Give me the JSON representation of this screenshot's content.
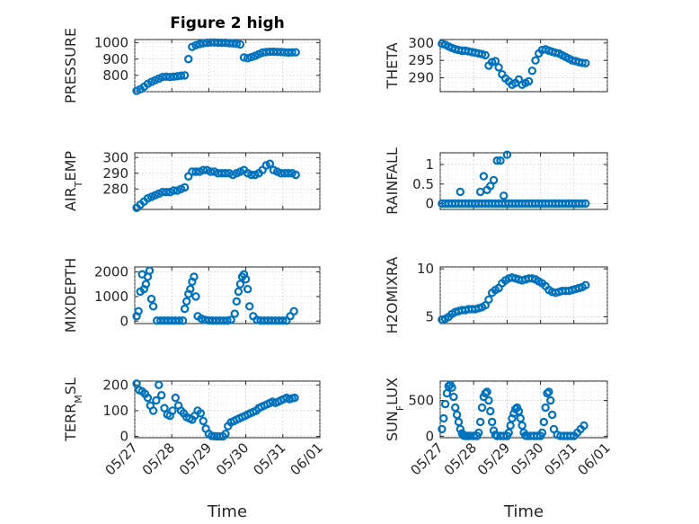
{
  "figure": {
    "title": "Figure 2 high",
    "xlabel": "Time"
  },
  "date_ticks": [
    "05/27",
    "05/28",
    "05/29",
    "05/30",
    "05/31",
    "06/01"
  ],
  "chart_data": [
    {
      "type": "scatter",
      "ylabel": "PRESSURE",
      "xlim": [
        0,
        5
      ],
      "ylim": [
        700,
        1020
      ],
      "yticks": [
        800,
        900,
        1000
      ],
      "x": [
        0.05,
        0.15,
        0.25,
        0.35,
        0.45,
        0.55,
        0.65,
        0.75,
        0.85,
        0.95,
        1.05,
        1.15,
        1.25,
        1.35,
        1.45,
        1.55,
        1.65,
        1.75,
        1.85,
        1.95,
        2.05,
        2.15,
        2.25,
        2.35,
        2.45,
        2.55,
        2.65,
        2.75,
        2.85,
        2.95,
        3.05,
        3.15,
        3.25,
        3.35,
        3.45,
        3.55,
        3.65,
        3.75,
        3.85,
        3.95,
        4.05,
        4.15,
        4.25,
        4.35
      ],
      "y": [
        705,
        715,
        730,
        748,
        760,
        770,
        780,
        790,
        792,
        790,
        792,
        795,
        798,
        800,
        900,
        975,
        985,
        992,
        997,
        1000,
        1002,
        1002,
        1001,
        1000,
        1000,
        998,
        996,
        994,
        990,
        910,
        905,
        912,
        920,
        930,
        940,
        943,
        945,
        945,
        944,
        943,
        942,
        940,
        941,
        942
      ]
    },
    {
      "type": "scatter",
      "ylabel": "THETA",
      "xlim": [
        0,
        5
      ],
      "ylim": [
        286,
        301
      ],
      "yticks": [
        290,
        295,
        300
      ],
      "x": [
        0.05,
        0.15,
        0.25,
        0.35,
        0.45,
        0.55,
        0.65,
        0.75,
        0.85,
        0.95,
        1.05,
        1.15,
        1.25,
        1.35,
        1.45,
        1.55,
        1.65,
        1.75,
        1.85,
        1.95,
        2.05,
        2.15,
        2.25,
        2.35,
        2.45,
        2.55,
        2.65,
        2.75,
        2.85,
        2.95,
        3.05,
        3.15,
        3.25,
        3.35,
        3.45,
        3.55,
        3.65,
        3.75,
        3.85,
        3.95,
        4.05,
        4.15,
        4.25,
        4.35
      ],
      "y": [
        299.8,
        299.5,
        299.0,
        298.6,
        298.2,
        298.0,
        297.8,
        297.8,
        297.6,
        297.4,
        297.2,
        297.0,
        296.8,
        296.5,
        293.5,
        294.5,
        294.8,
        293.0,
        291.0,
        289.8,
        289.0,
        288.0,
        288.5,
        289.5,
        288.0,
        288.5,
        289.0,
        292.0,
        295.0,
        297.0,
        298.0,
        298.2,
        297.8,
        297.5,
        297.2,
        297.0,
        296.5,
        296.0,
        295.5,
        295.0,
        294.8,
        294.5,
        294.3,
        294.2
      ]
    },
    {
      "type": "scatter",
      "ylabel": "AIR_TEMP",
      "xlim": [
        0,
        5
      ],
      "ylim": [
        267,
        303
      ],
      "yticks": [
        280,
        290,
        300
      ],
      "x": [
        0.05,
        0.15,
        0.25,
        0.35,
        0.45,
        0.55,
        0.65,
        0.75,
        0.85,
        0.95,
        1.05,
        1.15,
        1.25,
        1.35,
        1.45,
        1.55,
        1.65,
        1.75,
        1.85,
        1.95,
        2.05,
        2.15,
        2.25,
        2.35,
        2.45,
        2.55,
        2.65,
        2.75,
        2.85,
        2.95,
        3.05,
        3.15,
        3.25,
        3.35,
        3.45,
        3.55,
        3.65,
        3.75,
        3.85,
        3.95,
        4.05,
        4.15,
        4.25,
        4.35
      ],
      "y": [
        268,
        270,
        272,
        274,
        275,
        276,
        277,
        278,
        278,
        278,
        279,
        279,
        280,
        281,
        288,
        291,
        291,
        291,
        292,
        292,
        291,
        291,
        290,
        290,
        290,
        290,
        289,
        290,
        291,
        292,
        290,
        289,
        289,
        290,
        292,
        295,
        296,
        292,
        291,
        290,
        290,
        290,
        290,
        289
      ]
    },
    {
      "type": "scatter",
      "ylabel": "RAINFALL",
      "xlim": [
        0,
        5
      ],
      "ylim": [
        -0.15,
        1.3
      ],
      "yticks": [
        0,
        0.5,
        1
      ],
      "x": [
        0.05,
        0.15,
        0.25,
        0.35,
        0.45,
        0.55,
        0.65,
        0.75,
        0.85,
        0.95,
        1.05,
        1.15,
        1.25,
        1.35,
        1.45,
        1.55,
        1.65,
        1.75,
        1.85,
        1.95,
        2.05,
        2.15,
        2.25,
        2.35,
        2.45,
        2.55,
        2.65,
        2.75,
        2.85,
        2.95,
        3.05,
        3.15,
        3.25,
        3.35,
        3.45,
        3.55,
        3.65,
        3.75,
        3.85,
        3.95,
        4.05,
        4.15,
        4.25,
        4.35,
        0.6,
        1.2,
        1.3,
        1.4,
        1.5,
        1.6,
        1.7,
        1.8,
        1.9,
        2.0
      ],
      "y": [
        0,
        0,
        0,
        0,
        0,
        0,
        0,
        0,
        0,
        0,
        0,
        0,
        0,
        0,
        0,
        0,
        0,
        0,
        0,
        0,
        0,
        0,
        0,
        0,
        0,
        0,
        0,
        0,
        0,
        0,
        0,
        0,
        0,
        0,
        0,
        0,
        0,
        0,
        0,
        0,
        0,
        0,
        0,
        0,
        0.3,
        0.3,
        0.7,
        0.35,
        0.45,
        0.6,
        1.1,
        1.1,
        0.2,
        1.25
      ]
    },
    {
      "type": "scatter",
      "ylabel": "MIXDEPTH",
      "xlim": [
        0,
        5
      ],
      "ylim": [
        -100,
        2200
      ],
      "yticks": [
        0,
        1000,
        2000
      ],
      "x": [
        0.05,
        0.1,
        0.15,
        0.2,
        0.25,
        0.3,
        0.35,
        0.4,
        0.45,
        0.5,
        0.6,
        0.7,
        0.8,
        0.9,
        1.0,
        1.1,
        1.2,
        1.3,
        1.35,
        1.4,
        1.45,
        1.5,
        1.55,
        1.6,
        1.65,
        1.7,
        1.8,
        1.9,
        2.0,
        2.1,
        2.2,
        2.3,
        2.4,
        2.5,
        2.6,
        2.7,
        2.75,
        2.8,
        2.85,
        2.9,
        2.95,
        3.0,
        3.05,
        3.1,
        3.2,
        3.3,
        3.4,
        3.5,
        3.6,
        3.7,
        3.8,
        3.9,
        4.0,
        4.1,
        4.2,
        4.3
      ],
      "y": [
        200,
        400,
        1200,
        1900,
        1300,
        1500,
        1800,
        2050,
        900,
        600,
        20,
        20,
        20,
        20,
        20,
        20,
        20,
        20,
        500,
        800,
        1100,
        1300,
        1600,
        1800,
        1000,
        200,
        100,
        50,
        30,
        20,
        20,
        20,
        20,
        20,
        50,
        300,
        800,
        1200,
        1500,
        1800,
        1900,
        1700,
        1300,
        600,
        200,
        50,
        20,
        20,
        20,
        20,
        20,
        20,
        20,
        20,
        200,
        400
      ]
    },
    {
      "type": "scatter",
      "ylabel": "H2OMIXRA",
      "xlim": [
        0,
        5
      ],
      "ylim": [
        4.3,
        10.2
      ],
      "yticks": [
        5,
        10
      ],
      "x": [
        0.05,
        0.15,
        0.25,
        0.35,
        0.45,
        0.55,
        0.65,
        0.75,
        0.85,
        0.95,
        1.05,
        1.15,
        1.25,
        1.35,
        1.45,
        1.55,
        1.65,
        1.75,
        1.85,
        1.95,
        2.05,
        2.15,
        2.25,
        2.35,
        2.45,
        2.55,
        2.65,
        2.75,
        2.85,
        2.95,
        3.05,
        3.15,
        3.25,
        3.35,
        3.45,
        3.55,
        3.65,
        3.75,
        3.85,
        3.95,
        4.05,
        4.15,
        4.25,
        4.35
      ],
      "y": [
        4.7,
        4.8,
        5.0,
        5.3,
        5.5,
        5.6,
        5.7,
        5.7,
        5.8,
        5.8,
        5.8,
        5.9,
        6.0,
        6.2,
        6.8,
        7.5,
        7.8,
        8.0,
        8.5,
        8.8,
        9.0,
        9.1,
        9.0,
        8.9,
        8.8,
        8.9,
        9.0,
        9.0,
        8.9,
        8.7,
        8.5,
        8.2,
        7.8,
        7.6,
        7.5,
        7.6,
        7.7,
        7.7,
        7.7,
        7.8,
        7.9,
        8.0,
        8.1,
        8.3
      ]
    },
    {
      "type": "scatter",
      "ylabel": "TERR_MSL",
      "xlim": [
        0,
        5
      ],
      "ylim": [
        -5,
        215
      ],
      "yticks": [
        0,
        100,
        200
      ],
      "x": [
        0.05,
        0.12,
        0.2,
        0.28,
        0.35,
        0.42,
        0.5,
        0.58,
        0.65,
        0.72,
        0.8,
        0.88,
        0.95,
        1.02,
        1.1,
        1.18,
        1.25,
        1.32,
        1.4,
        1.48,
        1.55,
        1.62,
        1.7,
        1.78,
        1.85,
        1.92,
        2.0,
        2.08,
        2.15,
        2.22,
        2.3,
        2.38,
        2.45,
        2.52,
        2.6,
        2.68,
        2.75,
        2.82,
        2.9,
        2.98,
        3.05,
        3.12,
        3.2,
        3.28,
        3.35,
        3.42,
        3.5,
        3.58,
        3.65,
        3.72,
        3.8,
        3.88,
        3.95,
        4.02,
        4.1,
        4.18,
        4.25,
        4.32
      ],
      "y": [
        205,
        180,
        175,
        165,
        150,
        120,
        100,
        140,
        200,
        160,
        110,
        85,
        80,
        100,
        150,
        120,
        100,
        90,
        75,
        70,
        65,
        80,
        100,
        90,
        60,
        30,
        10,
        2,
        1,
        0,
        0,
        0,
        10,
        40,
        55,
        60,
        65,
        70,
        75,
        80,
        85,
        90,
        95,
        100,
        110,
        115,
        120,
        125,
        130,
        135,
        130,
        135,
        140,
        145,
        150,
        145,
        148,
        150
      ]
    },
    {
      "type": "scatter",
      "ylabel": "SUN_FLUX",
      "xlim": [
        0,
        5
      ],
      "ylim": [
        -20,
        770
      ],
      "yticks": [
        0,
        500
      ],
      "x": [
        0.05,
        0.1,
        0.15,
        0.2,
        0.25,
        0.3,
        0.35,
        0.4,
        0.45,
        0.5,
        0.55,
        0.6,
        0.65,
        0.7,
        0.75,
        0.8,
        0.85,
        0.9,
        1.0,
        1.1,
        1.15,
        1.2,
        1.25,
        1.3,
        1.35,
        1.4,
        1.45,
        1.5,
        1.55,
        1.6,
        1.65,
        1.7,
        1.8,
        1.9,
        2.0,
        2.05,
        2.1,
        2.15,
        2.2,
        2.25,
        2.3,
        2.35,
        2.4,
        2.45,
        2.5,
        2.55,
        2.6,
        2.7,
        2.8,
        2.9,
        3.0,
        3.05,
        3.1,
        3.15,
        3.2,
        3.25,
        3.3,
        3.35,
        3.4,
        3.5,
        3.6,
        3.7,
        3.8,
        3.9,
        4.0,
        4.1,
        4.2,
        4.3
      ],
      "y": [
        100,
        250,
        450,
        600,
        700,
        720,
        680,
        550,
        400,
        300,
        200,
        100,
        40,
        10,
        5,
        5,
        5,
        5,
        5,
        5,
        50,
        200,
        400,
        550,
        600,
        620,
        500,
        350,
        200,
        80,
        20,
        5,
        5,
        5,
        5,
        50,
        150,
        250,
        320,
        380,
        400,
        350,
        250,
        150,
        50,
        10,
        5,
        5,
        5,
        5,
        5,
        50,
        200,
        400,
        600,
        620,
        500,
        300,
        100,
        20,
        5,
        5,
        5,
        5,
        5,
        50,
        100,
        150
      ]
    }
  ]
}
